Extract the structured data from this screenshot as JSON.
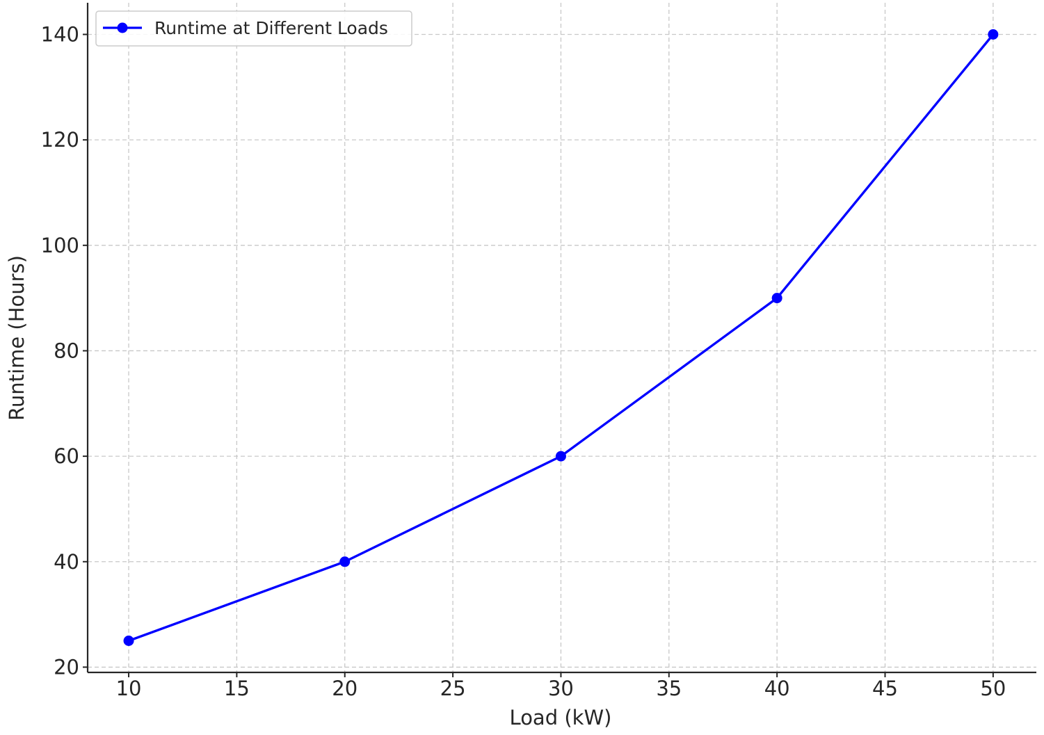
{
  "chart_data": {
    "type": "line",
    "title": "",
    "xlabel": "Load (kW)",
    "ylabel": "Runtime (Hours)",
    "xlim": [
      8.1,
      52
    ],
    "ylim": [
      19,
      146
    ],
    "x_ticks": [
      10,
      15,
      20,
      25,
      30,
      35,
      40,
      45,
      50
    ],
    "y_ticks": [
      20,
      40,
      60,
      80,
      100,
      120,
      140
    ],
    "grid": true,
    "legend_position": "top-left",
    "series": [
      {
        "name": "Runtime at Different Loads",
        "color": "#0000ff",
        "marker": "circle",
        "x": [
          10,
          20,
          30,
          40,
          50
        ],
        "y": [
          25,
          40,
          60,
          90,
          140
        ]
      }
    ]
  }
}
